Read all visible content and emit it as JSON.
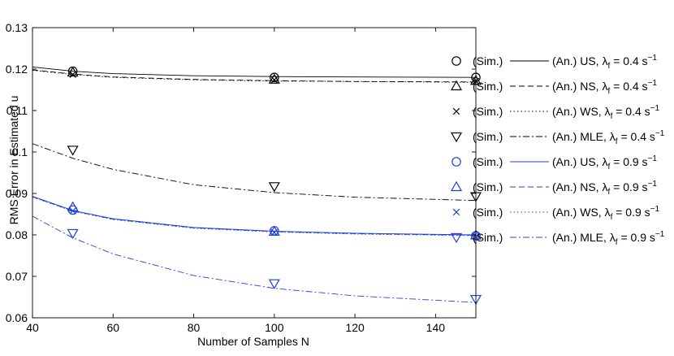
{
  "chart_data": {
    "type": "line",
    "xlabel": "Number of Samples N",
    "ylabel": "RMS Error in Estimated u",
    "xlim": [
      40,
      150
    ],
    "ylim": [
      0.06,
      0.13
    ],
    "xticks": [
      40,
      60,
      80,
      100,
      120,
      140
    ],
    "yticks": [
      0.06,
      0.07,
      0.08,
      0.09,
      0.1,
      0.11,
      0.12,
      0.13
    ],
    "xtick_labels": [
      "40",
      "60",
      "80",
      "100",
      "120",
      "140"
    ],
    "ytick_labels": [
      "0.06",
      "0.07",
      "0.08",
      "0.09",
      "0.1",
      "0.11",
      "0.12",
      "0.13"
    ],
    "grid": false,
    "legend_position": "outside-right",
    "colors": {
      "black": "#000000",
      "blue": "#1f3fd6"
    },
    "sim_label": "(Sim.)",
    "an_prefix": "(An.)",
    "lambda_sym": "λ",
    "lambda_sub": "f",
    "unit": "s",
    "unit_exp": "−1",
    "series": [
      {
        "name": "US, λf = 0.4 s−1",
        "method": "US",
        "lambda_value": "0.4",
        "color": "black",
        "dash": "solid",
        "marker": "circle",
        "sim_x": [
          50,
          100,
          150
        ],
        "sim_y": [
          0.1195,
          0.118,
          0.118
        ],
        "an_x": [
          40,
          50,
          60,
          80,
          100,
          120,
          150
        ],
        "an_y": [
          0.1205,
          0.1195,
          0.1189,
          0.1184,
          0.1182,
          0.1181,
          0.118
        ]
      },
      {
        "name": "NS, λf = 0.4 s−1",
        "method": "NS",
        "lambda_value": "0.4",
        "color": "black",
        "dash": "dashed",
        "marker": "triangle-up",
        "sim_x": [
          50,
          100,
          150
        ],
        "sim_y": [
          0.1192,
          0.1175,
          0.1172
        ],
        "an_x": [
          40,
          50,
          60,
          80,
          100,
          120,
          150
        ],
        "an_y": [
          0.1198,
          0.1188,
          0.1181,
          0.1175,
          0.1172,
          0.117,
          0.1169
        ]
      },
      {
        "name": "WS, λf = 0.4 s−1",
        "method": "WS",
        "lambda_value": "0.4",
        "color": "black",
        "dash": "dotted",
        "marker": "x",
        "sim_x": [
          50,
          100,
          150
        ],
        "sim_y": [
          0.1187,
          0.1174,
          0.1171
        ],
        "an_x": [
          40,
          50,
          60,
          80,
          100,
          120,
          150
        ],
        "an_y": [
          0.1197,
          0.1187,
          0.118,
          0.1174,
          0.1171,
          0.117,
          0.1168
        ]
      },
      {
        "name": "MLE, λf = 0.4 s−1",
        "method": "MLE",
        "lambda_value": "0.4",
        "color": "black",
        "dash": "dashdot",
        "marker": "triangle-down",
        "sim_x": [
          50,
          100,
          150
        ],
        "sim_y": [
          0.1005,
          0.0917,
          0.0893
        ],
        "an_x": [
          40,
          50,
          60,
          80,
          100,
          120,
          150
        ],
        "an_y": [
          0.102,
          0.0985,
          0.0958,
          0.0921,
          0.0902,
          0.0891,
          0.0883
        ]
      },
      {
        "name": "US, λf = 0.9 s−1",
        "method": "US",
        "lambda_value": "0.9",
        "color": "blue",
        "dash": "solid",
        "marker": "circle",
        "sim_x": [
          50,
          100,
          150
        ],
        "sim_y": [
          0.086,
          0.081,
          0.0798
        ],
        "an_x": [
          40,
          50,
          60,
          80,
          100,
          120,
          150
        ],
        "an_y": [
          0.0893,
          0.0859,
          0.0839,
          0.0818,
          0.0809,
          0.0804,
          0.08
        ]
      },
      {
        "name": "NS, λf = 0.9 s−1",
        "method": "NS",
        "lambda_value": "0.9",
        "color": "blue",
        "dash": "dashed",
        "marker": "triangle-up",
        "sim_x": [
          50,
          100,
          150
        ],
        "sim_y": [
          0.0867,
          0.0808,
          0.0799
        ],
        "an_x": [
          40,
          50,
          60,
          80,
          100,
          120,
          150
        ],
        "an_y": [
          0.0892,
          0.0858,
          0.0838,
          0.0817,
          0.0808,
          0.0803,
          0.0799
        ]
      },
      {
        "name": "WS, λf = 0.9 s−1",
        "method": "WS",
        "lambda_value": "0.9",
        "color": "blue",
        "dash": "dotted",
        "marker": "x",
        "sim_x": [
          50,
          100,
          150
        ],
        "sim_y": [
          0.0858,
          0.0806,
          0.0796
        ],
        "an_x": [
          40,
          50,
          60,
          80,
          100,
          120,
          150
        ],
        "an_y": [
          0.0891,
          0.0857,
          0.0837,
          0.0816,
          0.0807,
          0.0802,
          0.0798
        ]
      },
      {
        "name": "MLE, λf = 0.9 s−1",
        "method": "MLE",
        "lambda_value": "0.9",
        "color": "blue",
        "dash": "dashdot",
        "marker": "triangle-down",
        "sim_x": [
          50,
          100,
          150
        ],
        "sim_y": [
          0.0804,
          0.0683,
          0.0645
        ],
        "an_x": [
          40,
          50,
          60,
          80,
          100,
          120,
          150
        ],
        "an_y": [
          0.0845,
          0.0793,
          0.0754,
          0.0702,
          0.0671,
          0.0653,
          0.0637
        ]
      }
    ]
  }
}
